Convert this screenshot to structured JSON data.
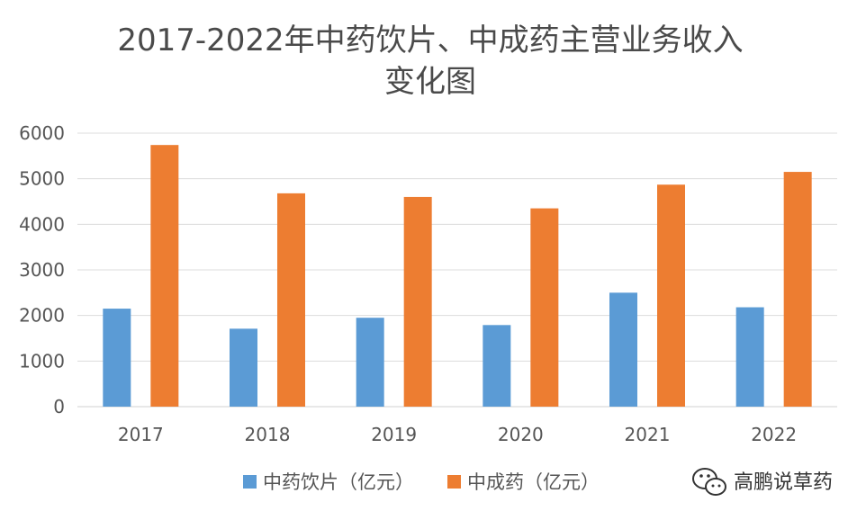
{
  "chart_data": {
    "type": "bar",
    "title": "2017-2022年中药饮片、中成药主营业务收入",
    "title_line2": "变化图",
    "xlabel": "",
    "ylabel": "",
    "categories": [
      "2017",
      "2018",
      "2019",
      "2020",
      "2021",
      "2022"
    ],
    "series": [
      {
        "name": "中药饮片（亿元）",
        "color": "#5b9bd5",
        "values": [
          2150,
          1710,
          1950,
          1790,
          2500,
          2180
        ]
      },
      {
        "name": "中成药（亿元）",
        "color": "#ed7d31",
        "values": [
          5740,
          4680,
          4600,
          4350,
          4870,
          5150
        ]
      }
    ],
    "ylim": [
      0,
      6000
    ],
    "yticks": [
      "0",
      "1000",
      "2000",
      "3000",
      "4000",
      "5000",
      "6000"
    ],
    "grid": true,
    "legend_position": "bottom"
  },
  "watermark": {
    "text": "高鹏说草药",
    "icon": "wechat-icon"
  }
}
